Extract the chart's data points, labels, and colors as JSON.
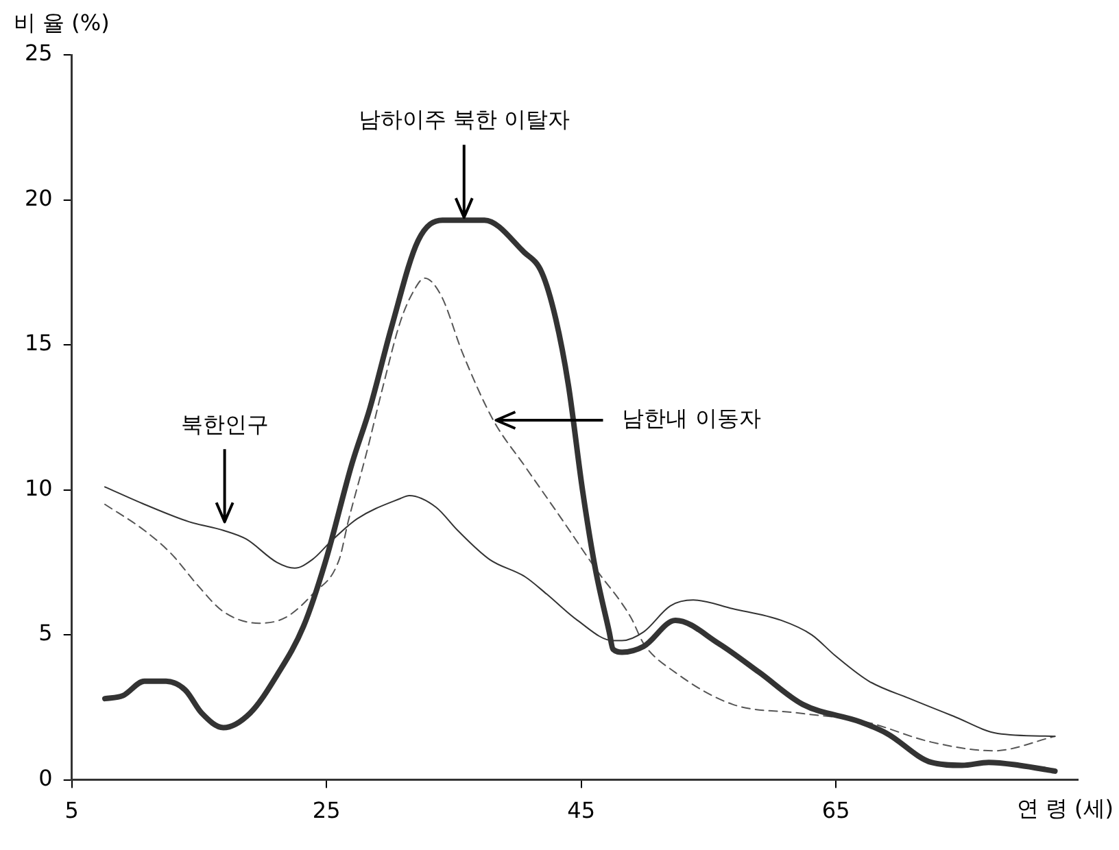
{
  "chart_data": {
    "type": "line",
    "xlabel": "연 령 (세)",
    "ylabel": "비 율 (%)",
    "xlim": [
      5,
      84
    ],
    "xticks": [
      5,
      25,
      45,
      65
    ],
    "ylim": [
      0,
      25
    ],
    "yticks": [
      0,
      5,
      10,
      15,
      20,
      25
    ],
    "grid": false,
    "legend": false,
    "marker": "none",
    "series": [
      {
        "color": "#333333",
        "line_style": "solid",
        "x": [
          7.6,
          9,
          10.7,
          12.4,
          13.9,
          15.2,
          16.9,
          19,
          21.1,
          23.2,
          24.9,
          27,
          28.4,
          30.1,
          32.2,
          34.1,
          37.4,
          40.5,
          41.9,
          43,
          44,
          45.1,
          46.1,
          47.2,
          47.5,
          48.2,
          49.9,
          52.4,
          55.8,
          59,
          62.4,
          66.9,
          69,
          72.5,
          74.9,
          77,
          79.4,
          82.2
        ],
        "values": [
          2.8,
          2.9,
          3.4,
          3.4,
          3.1,
          2.3,
          1.8,
          2.3,
          3.6,
          5.3,
          7.5,
          10.9,
          12.8,
          15.6,
          18.6,
          19.3,
          19.3,
          18.2,
          17.5,
          15.9,
          13.6,
          10,
          7.3,
          5.1,
          4.5,
          4.4,
          4.6,
          5.5,
          4.7,
          3.7,
          2.6,
          2,
          1.6,
          0.6,
          0.5,
          0.6,
          0.5,
          0.3
        ]
      },
      {
        "color": "#333333",
        "line_style": "solid",
        "x": [
          7.6,
          10.7,
          14.2,
          16.9,
          18.7,
          21.1,
          22.5,
          23.9,
          25.3,
          27.4,
          30.8,
          31.5,
          33.6,
          35.3,
          37.8,
          40.6,
          42.3,
          44.7,
          47.5,
          48.2,
          49.9,
          52,
          53.8,
          56.9,
          60.7,
          63.1,
          64.9,
          67.6,
          70.8,
          74.2,
          77.7,
          82.2
        ],
        "values": [
          10.1,
          9.5,
          8.9,
          8.6,
          8.3,
          7.5,
          7.3,
          7.6,
          8.2,
          9,
          9.7,
          9.8,
          9.4,
          8.6,
          7.6,
          7,
          6.4,
          5.5,
          4.8,
          4.8,
          5.1,
          6,
          6.2,
          5.9,
          5.5,
          5,
          4.3,
          3.4,
          2.8,
          2.2,
          1.6,
          1.5
        ]
      },
      {
        "color": "#555555",
        "line_style": "dashed",
        "x": [
          7.6,
          10.7,
          12.8,
          14.9,
          16.9,
          19.7,
          21.8,
          23.9,
          26,
          26.7,
          28.1,
          29.4,
          30.8,
          31.9,
          32.7,
          34,
          35.7,
          38.1,
          40.6,
          43.3,
          46.1,
          48.9,
          49.9,
          52.4,
          56.9,
          62.1,
          67.3,
          72.5,
          77.4,
          82.2
        ],
        "values": [
          9.5,
          8.6,
          7.8,
          6.7,
          5.8,
          5.4,
          5.6,
          6.4,
          7.6,
          8.9,
          11.2,
          13.5,
          15.8,
          16.9,
          17.3,
          16.7,
          14.7,
          12.4,
          10.8,
          9.1,
          7.3,
          5.6,
          4.7,
          3.7,
          2.6,
          2.3,
          2,
          1.3,
          1,
          1.5
        ]
      }
    ],
    "annotations": [
      {
        "text": "남하이주 북한 이탈자",
        "x": 35.8,
        "y": 19.3
      },
      {
        "text": "북한인구",
        "x": 17,
        "y": 8.8
      },
      {
        "text": "남한내 이동자",
        "x": 38.1,
        "y": 12.4
      }
    ]
  }
}
